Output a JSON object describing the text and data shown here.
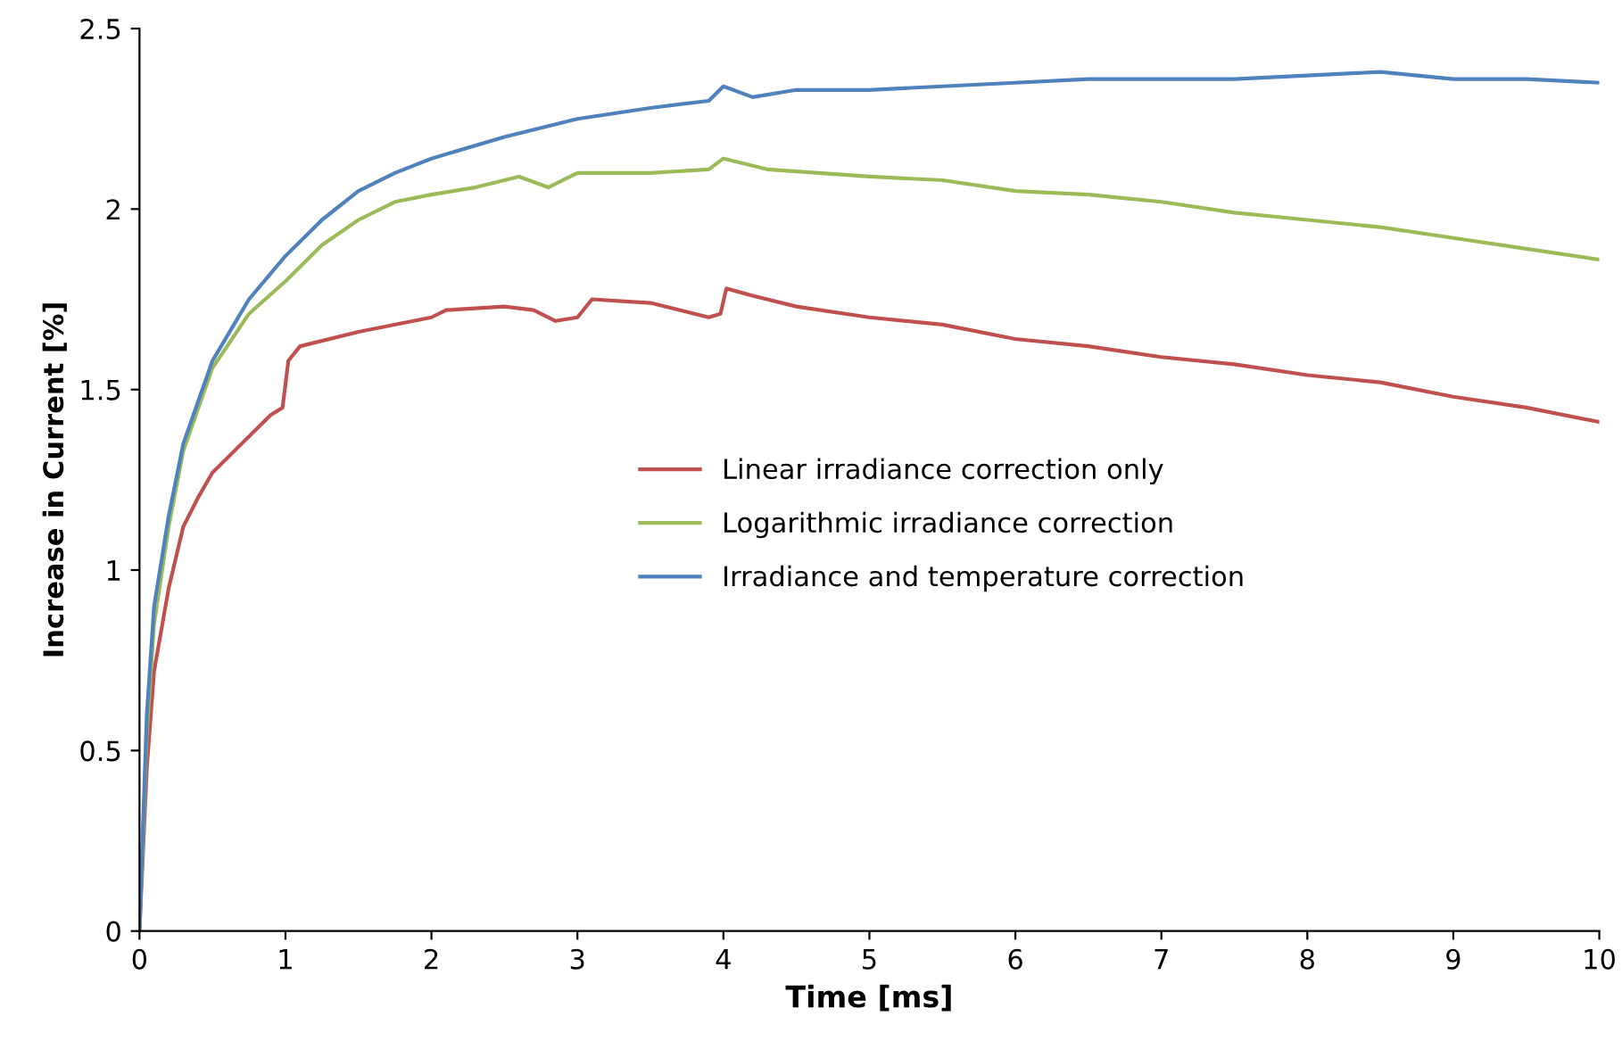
{
  "chart_data": {
    "type": "line",
    "xlabel": "Time [ms]",
    "ylabel": "Increase in Current [%]",
    "xlim": [
      0,
      10
    ],
    "ylim": [
      0,
      2.5
    ],
    "xticks": [
      0,
      1,
      2,
      3,
      4,
      5,
      6,
      7,
      8,
      9,
      10
    ],
    "yticks": [
      0,
      {
        "value": 0.5,
        "label": "0.5"
      },
      1,
      {
        "value": 1.5,
        "label": "1.5"
      },
      2,
      {
        "value": 2.5,
        "label": "2.5"
      }
    ],
    "grid": false,
    "legend": "center",
    "marker": "none",
    "line_style": "solid",
    "series": [
      {
        "name": "Linear irradiance correction only",
        "color": "#c0504d",
        "x": [
          0,
          0.05,
          0.1,
          0.2,
          0.3,
          0.4,
          0.5,
          0.7,
          0.9,
          0.98,
          1.02,
          1.1,
          1.5,
          2,
          2.1,
          2.5,
          2.7,
          2.85,
          3,
          3.1,
          3.5,
          3.9,
          3.98,
          4.02,
          4.2,
          4.5,
          5,
          5.5,
          6,
          6.5,
          7,
          7.5,
          8,
          8.5,
          9,
          9.5,
          10
        ],
        "values": [
          0,
          0.45,
          0.72,
          0.95,
          1.12,
          1.2,
          1.27,
          1.35,
          1.43,
          1.45,
          1.58,
          1.62,
          1.66,
          1.7,
          1.72,
          1.73,
          1.72,
          1.69,
          1.7,
          1.75,
          1.74,
          1.7,
          1.71,
          1.78,
          1.76,
          1.73,
          1.7,
          1.68,
          1.64,
          1.62,
          1.59,
          1.57,
          1.54,
          1.52,
          1.48,
          1.45,
          1.41
        ]
      },
      {
        "name": "Logarithmic irradiance correction",
        "color": "#9bbb59",
        "x": [
          0,
          0.05,
          0.1,
          0.2,
          0.3,
          0.5,
          0.75,
          1,
          1.25,
          1.5,
          1.75,
          2,
          2.3,
          2.6,
          2.8,
          3,
          3.5,
          3.9,
          4,
          4.3,
          5,
          5.5,
          6,
          6.5,
          7,
          7.5,
          8,
          8.5,
          9,
          9.5,
          10
        ],
        "values": [
          0,
          0.55,
          0.85,
          1.12,
          1.33,
          1.56,
          1.71,
          1.8,
          1.9,
          1.97,
          2.02,
          2.04,
          2.06,
          2.09,
          2.06,
          2.1,
          2.1,
          2.11,
          2.14,
          2.11,
          2.09,
          2.08,
          2.05,
          2.04,
          2.02,
          1.99,
          1.97,
          1.95,
          1.92,
          1.89,
          1.86
        ]
      },
      {
        "name": "Irradiance and temperature correction",
        "color": "#4f81bd",
        "x": [
          0,
          0.05,
          0.1,
          0.2,
          0.3,
          0.5,
          0.75,
          1,
          1.25,
          1.5,
          1.75,
          2,
          2.5,
          3,
          3.5,
          3.9,
          4,
          4.2,
          4.5,
          5,
          5.5,
          6,
          6.5,
          7,
          7.5,
          8,
          8.5,
          9,
          9.5,
          10
        ],
        "values": [
          0,
          0.6,
          0.9,
          1.15,
          1.35,
          1.58,
          1.75,
          1.87,
          1.97,
          2.05,
          2.1,
          2.14,
          2.2,
          2.25,
          2.28,
          2.3,
          2.34,
          2.31,
          2.33,
          2.33,
          2.34,
          2.35,
          2.36,
          2.36,
          2.36,
          2.37,
          2.38,
          2.36,
          2.36,
          2.35
        ]
      }
    ]
  }
}
